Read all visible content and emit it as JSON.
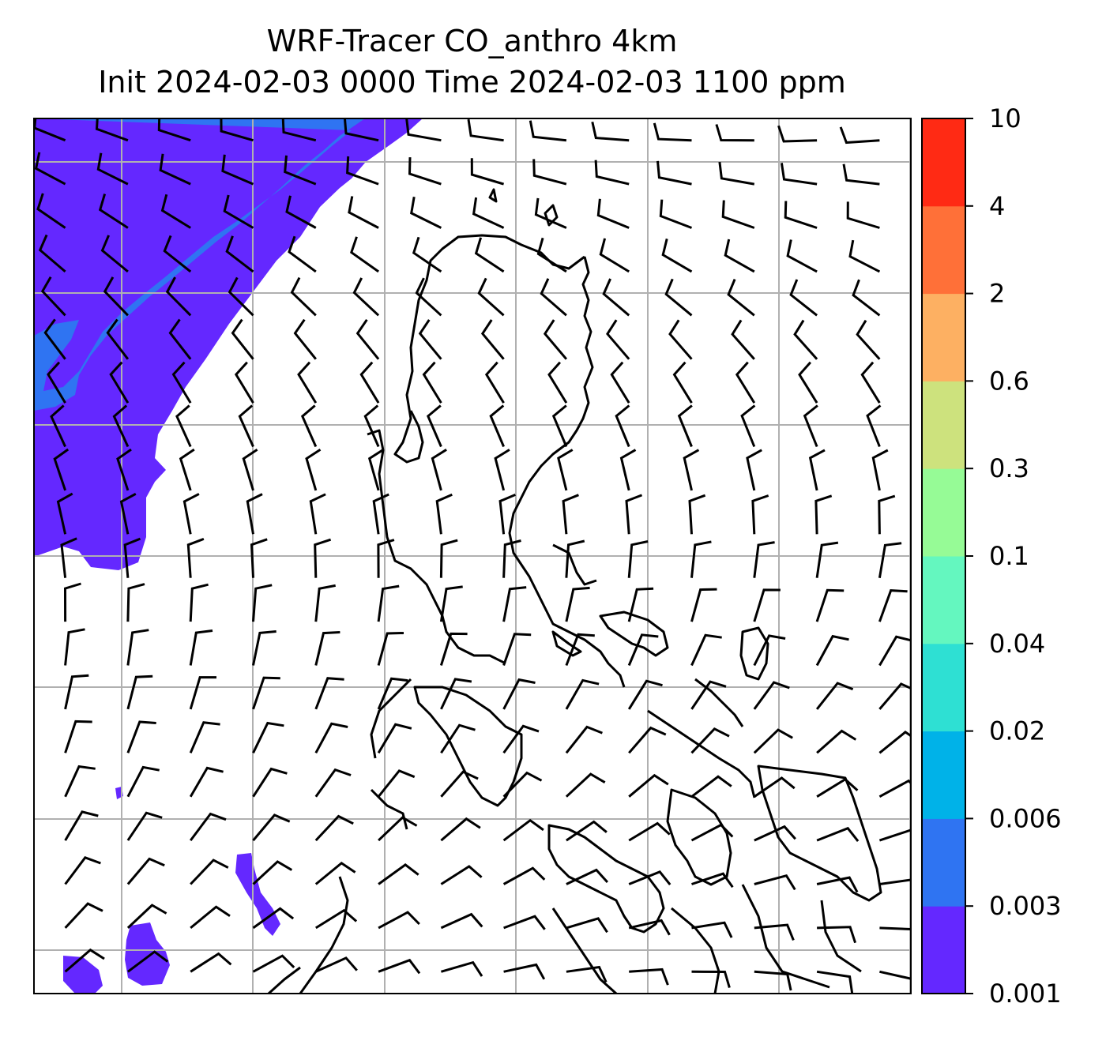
{
  "title": {
    "line1": "WRF-Tracer CO_anthro 4km",
    "line2": "Init 2024-02-03 0000 Time 2024-02-03 1100 ppm"
  },
  "colorbar": {
    "levels": [
      {
        "label": "0.001",
        "color": "#6428ff"
      },
      {
        "label": "0.003",
        "color": "#2f74f2"
      },
      {
        "label": "0.006",
        "color": "#00b2e8"
      },
      {
        "label": "0.02",
        "color": "#2ee0d3"
      },
      {
        "label": "0.04",
        "color": "#64f7bf"
      },
      {
        "label": "0.1",
        "color": "#96fb96"
      },
      {
        "label": "0.3",
        "color": "#cde27d"
      },
      {
        "label": "0.6",
        "color": "#fdb062"
      },
      {
        "label": "2",
        "color": "#ff7038"
      },
      {
        "label": "4",
        "color": "#ff2a14"
      },
      {
        "label": "10",
        "color": null
      }
    ]
  },
  "map": {
    "field": "CO_anthro",
    "units": "ppm",
    "gridlines": true,
    "wind_barbs": true,
    "coastlines": true
  }
}
